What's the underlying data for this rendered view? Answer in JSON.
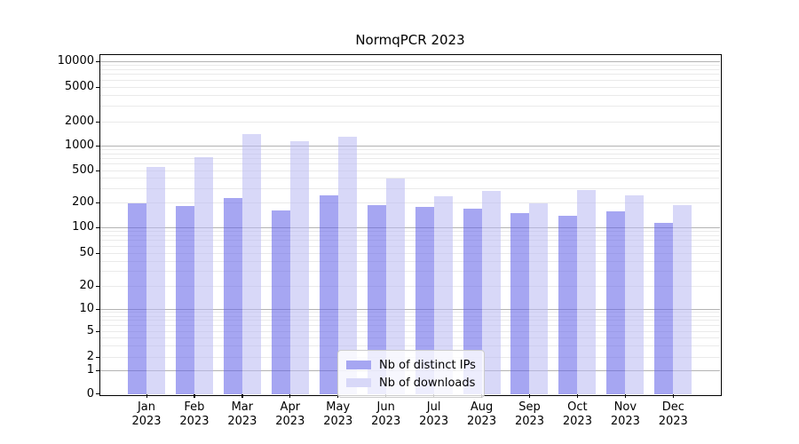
{
  "chart_data": {
    "type": "bar",
    "title": "NormqPCR 2023",
    "categories": [
      "Jan",
      "Feb",
      "Mar",
      "Apr",
      "May",
      "Jun",
      "Jul",
      "Aug",
      "Sep",
      "Oct",
      "Nov",
      "Dec"
    ],
    "year_label": "2023",
    "series": [
      {
        "name": "Nb of distinct IPs",
        "color": "#a6a6f2",
        "values": [
          193,
          180,
          228,
          162,
          247,
          188,
          178,
          168,
          147,
          139,
          155,
          112
        ]
      },
      {
        "name": "Nb of downloads",
        "color": "#d8d8f8",
        "values": [
          556,
          729,
          1390,
          1147,
          1297,
          398,
          240,
          277,
          193,
          288,
          243,
          188
        ]
      }
    ],
    "yticks": [
      0,
      1,
      2,
      5,
      10,
      20,
      50,
      100,
      200,
      500,
      1000,
      2000,
      5000,
      10000
    ],
    "yscale": "symlog",
    "ylim": [
      0,
      14000
    ],
    "grid": "horizontal-major-and-minor",
    "legend_position": "lower-center",
    "colors": {
      "grid_major": "#b3b3b3",
      "grid_minor": "#eaeaea",
      "axis": "#000000",
      "background": "#ffffff"
    }
  }
}
